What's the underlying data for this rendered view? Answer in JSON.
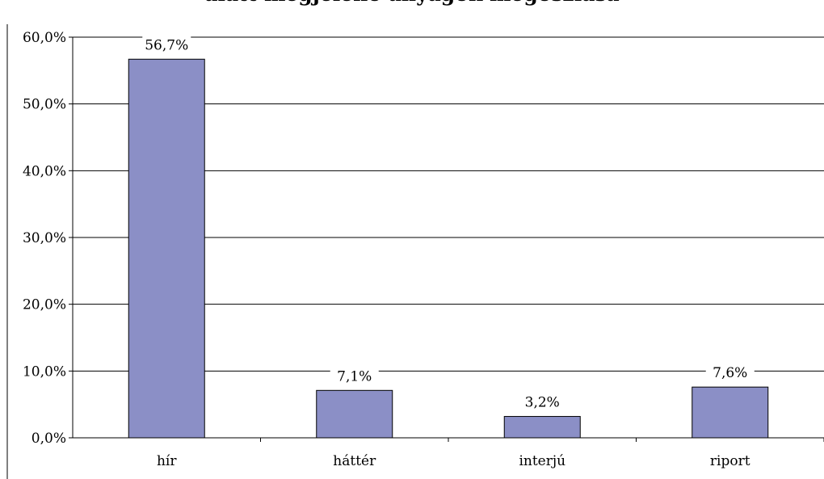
{
  "chart_data": {
    "type": "bar",
    "title": "alatt megjelenő anyagok megoszlása",
    "xlabel": "",
    "ylabel": "",
    "categories": [
      "hír",
      "háttér",
      "interjú",
      "riport"
    ],
    "values": [
      56.7,
      7.1,
      3.2,
      7.6
    ],
    "data_labels": [
      "56,7%",
      "7,1%",
      "3,2%",
      "7,6%"
    ],
    "ylim": [
      0,
      60
    ],
    "y_ticks": [
      0,
      10,
      20,
      30,
      40,
      50,
      60
    ],
    "y_tick_labels": [
      "0,0%",
      "10,0%",
      "20,0%",
      "30,0%",
      "40,0%",
      "50,0%",
      "60,0%"
    ],
    "grid": true,
    "legend": "none",
    "bar_color": "#8b8fc6"
  }
}
